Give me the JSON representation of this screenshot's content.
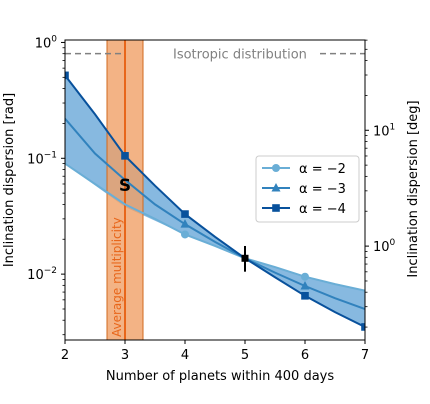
{
  "chart_data": {
    "type": "line",
    "xlabel": "Number of planets within 400 days",
    "ylabel": "Inclination dispersion [rad]",
    "ylabel_right": "Inclination dispersion [deg]",
    "xlim": [
      2,
      7
    ],
    "ylim": [
      0.0027,
      1.05
    ],
    "yscale": "log",
    "x_ticks": [
      2,
      3,
      4,
      5,
      6,
      7
    ],
    "y_ticks": [
      {
        "value": 0.01,
        "label": "10^-2"
      },
      {
        "value": 0.1,
        "label": "10^-1"
      },
      {
        "value": 1,
        "label": "10^0"
      }
    ],
    "y_ticks_right": [
      {
        "deg": 1,
        "label": "10^0"
      },
      {
        "deg": 10,
        "label": "10^1"
      }
    ],
    "x_fine": [
      2,
      2.5,
      3,
      3.5,
      4,
      4.5,
      5,
      5.5,
      6,
      6.5,
      7
    ],
    "band": {
      "x": [
        2,
        3,
        4,
        5,
        6,
        7
      ],
      "upper": [
        0.52,
        0.105,
        0.033,
        0.0137,
        0.0095,
        0.0072
      ],
      "lower": [
        0.09,
        0.038,
        0.022,
        0.0137,
        0.0065,
        0.0035
      ],
      "color": "#5fa2d6"
    },
    "series": [
      {
        "name": "α = −2",
        "color": "#6aaed6",
        "marker": "circle",
        "values": [
          0.09,
          0.06,
          0.04,
          0.03,
          0.022,
          0.0175,
          0.0137,
          0.0115,
          0.0095,
          0.0082,
          0.0072
        ],
        "marker_x": [
          4,
          6
        ],
        "marker_values": [
          0.022,
          0.0095
        ]
      },
      {
        "name": "α = −3",
        "color": "#3182bd",
        "marker": "triangle",
        "values": [
          0.22,
          0.11,
          0.065,
          0.04,
          0.027,
          0.019,
          0.0137,
          0.0103,
          0.0079,
          0.0062,
          0.005
        ],
        "marker_x": [
          4,
          6
        ],
        "marker_values": [
          0.027,
          0.0079
        ]
      },
      {
        "name": "α = −4",
        "color": "#08519c",
        "marker": "square",
        "values": [
          0.52,
          0.24,
          0.105,
          0.058,
          0.033,
          0.021,
          0.0137,
          0.0094,
          0.0065,
          0.0047,
          0.0035
        ],
        "marker_x": [
          2,
          3,
          4,
          6,
          7
        ],
        "marker_values": [
          0.52,
          0.105,
          0.033,
          0.0065,
          0.0035
        ]
      }
    ],
    "isotropic": {
      "value": 0.8,
      "label": "Isotropic distribution",
      "color": "#808080"
    },
    "multiplicity": {
      "x": 3.0,
      "low": 2.7,
      "high": 3.3,
      "label": "Average multiplicity",
      "color": "#e8661a",
      "fill": "#f0a066"
    },
    "s_marker": {
      "x": 3.0,
      "y": 0.06,
      "label": "S"
    },
    "point": {
      "x": 5,
      "y": 0.0137,
      "ylow": 0.0105,
      "yhigh": 0.0175
    },
    "legend_position": "center-right"
  }
}
